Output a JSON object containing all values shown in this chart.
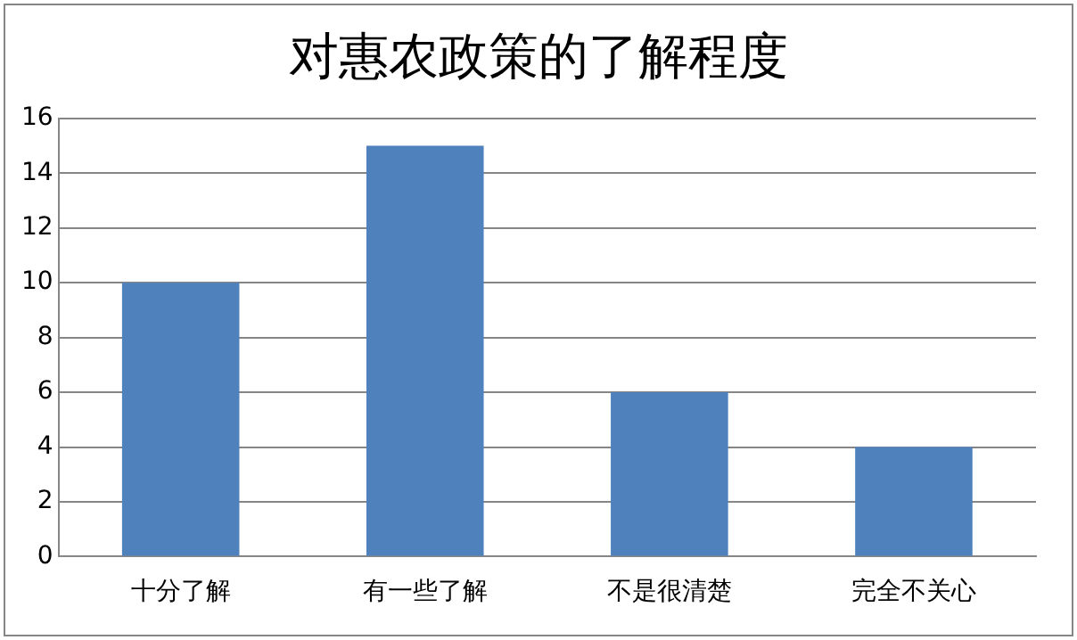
{
  "chart_data": {
    "type": "bar",
    "title": "对惠农政策的了解程度",
    "categories": [
      "十分了解",
      "有一些了解",
      "不是很清楚",
      "完全不关心"
    ],
    "values": [
      10,
      15,
      6,
      4
    ],
    "color": "#4f81bd",
    "ylim": [
      0,
      16
    ],
    "yticks": [
      0,
      2,
      4,
      6,
      8,
      10,
      12,
      14,
      16
    ],
    "grid": "y",
    "legend": false
  }
}
